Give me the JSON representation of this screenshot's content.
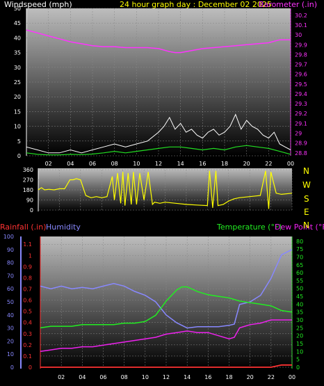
{
  "colors": {
    "background": "#000000",
    "wind_label": "#ffffff",
    "title": "#ffff00",
    "barometer": "#ff33ff",
    "direction": "#ffff00",
    "rain": "#ff3333",
    "humidity": "#8888ff",
    "temperature": "#22ee22",
    "dewpoint": "#ee22ee",
    "gust": "#ffffff",
    "avg": "#22dd22"
  },
  "header": {
    "windspeed_label": "Windspeed (mph)",
    "title": "24 hour graph day : December 02 2025",
    "barometer_label": "Barometer (.in)"
  },
  "bottom_header": {
    "rain_label": "Rainfall (.in)",
    "humidity_label": "Humidity",
    "temp_label": "Temperature (°F)",
    "dew_label": "Dew Point (°F)"
  },
  "x_ticks": [
    "02",
    "04",
    "06",
    "08",
    "10",
    "12",
    "14",
    "16",
    "18",
    "20",
    "22",
    "00"
  ],
  "compass": [
    "N",
    "W",
    "S",
    "E",
    "N"
  ],
  "chart_data": [
    {
      "type": "line",
      "name": "wind-barometer",
      "x_range": [
        0,
        24
      ],
      "left_axis": {
        "ticks": [
          0,
          5,
          10,
          15,
          20,
          25,
          30,
          35,
          40,
          45,
          50
        ],
        "range": [
          0,
          50
        ]
      },
      "right_axis": {
        "ticks": [
          "28.8",
          "28.9",
          "29",
          "29.1",
          "29.2",
          "29.3",
          "29.4",
          "29.5",
          "29.6",
          "29.7",
          "29.8",
          "29.9",
          "30",
          "30.1",
          "30.2"
        ],
        "range": [
          28.77,
          30.27
        ]
      },
      "barometer": {
        "x": [
          0,
          1,
          2,
          3,
          4,
          5,
          6,
          7,
          8,
          9,
          10,
          11,
          12,
          13,
          13.5,
          14,
          15,
          16,
          17,
          18,
          19,
          20,
          21,
          22,
          23,
          24
        ],
        "y": [
          30.05,
          30.02,
          29.99,
          29.96,
          29.93,
          29.91,
          29.89,
          29.88,
          29.88,
          29.87,
          29.87,
          29.87,
          29.86,
          29.83,
          29.82,
          29.82,
          29.84,
          29.86,
          29.87,
          29.88,
          29.89,
          29.9,
          29.91,
          29.92,
          29.95,
          29.95
        ]
      },
      "wind_gust": {
        "x": [
          0,
          1,
          2,
          3,
          4,
          5,
          6,
          7,
          8,
          9,
          10,
          11,
          12,
          12.5,
          13,
          13.5,
          14,
          14.5,
          15,
          15.5,
          16,
          16.5,
          17,
          17.5,
          18,
          18.5,
          19,
          19.5,
          20,
          20.5,
          21,
          21.5,
          22,
          22.5,
          23,
          23.5,
          24
        ],
        "y": [
          3,
          2,
          1,
          1,
          2,
          1,
          2,
          3,
          4,
          3,
          4,
          5,
          8,
          10,
          13,
          9,
          11,
          8,
          9,
          7,
          6,
          8,
          9,
          7,
          8,
          10,
          14,
          9,
          12,
          10,
          9,
          7,
          6,
          8,
          4,
          3,
          2
        ]
      },
      "wind_avg": {
        "x": [
          0,
          1,
          2,
          3,
          4,
          5,
          6,
          7,
          8,
          9,
          10,
          11,
          12,
          13,
          14,
          15,
          16,
          17,
          18,
          19,
          20,
          21,
          22,
          23,
          24
        ],
        "y": [
          1,
          0.5,
          0.3,
          0.3,
          0.5,
          0.4,
          0.6,
          1,
          1.5,
          1,
          1.5,
          2,
          2.5,
          3,
          3,
          2.5,
          2,
          2.5,
          2,
          3,
          3.5,
          3,
          2.5,
          1.5,
          0.5
        ]
      }
    },
    {
      "type": "line",
      "name": "wind-direction",
      "x_range": [
        0,
        24
      ],
      "left_axis": {
        "ticks": [
          0,
          90,
          180,
          270,
          360
        ],
        "range": [
          0,
          360
        ]
      },
      "direction": {
        "x": [
          0,
          0.3,
          0.6,
          1,
          1.5,
          2,
          2.5,
          3,
          3.3,
          3.6,
          4,
          4.5,
          5,
          5.5,
          6,
          6.5,
          7,
          7.2,
          7.5,
          7.8,
          8,
          8.2,
          8.5,
          8.8,
          9,
          9.3,
          9.6,
          10,
          10.4,
          10.8,
          11,
          11.5,
          12,
          13,
          14,
          15,
          16,
          16.2,
          16.5,
          16.8,
          17,
          17.5,
          18,
          18.5,
          19,
          20,
          21,
          21.5,
          21.8,
          22,
          22.5,
          23,
          24
        ],
        "y": [
          180,
          200,
          180,
          185,
          180,
          190,
          190,
          270,
          270,
          280,
          270,
          130,
          110,
          120,
          110,
          120,
          300,
          90,
          330,
          60,
          340,
          40,
          330,
          50,
          340,
          50,
          330,
          90,
          340,
          50,
          70,
          60,
          70,
          60,
          50,
          45,
          40,
          350,
          20,
          350,
          40,
          50,
          80,
          100,
          110,
          120,
          130,
          350,
          10,
          340,
          150,
          140,
          150
        ]
      }
    },
    {
      "type": "line",
      "name": "rain-humidity-temp-dew",
      "x_range": [
        0,
        24
      ],
      "humidity_axis": {
        "ticks": [
          0,
          10,
          20,
          30,
          40,
          50,
          60,
          70,
          80,
          90,
          100
        ],
        "range": [
          0,
          100
        ]
      },
      "rain_axis": {
        "ticks": [
          "0",
          "0.1",
          "0.2",
          "0.3",
          "0.4",
          "0.5",
          "0.6",
          "0.7",
          "0.8",
          "0.9",
          "1",
          "1.1"
        ],
        "range": [
          0,
          1.17
        ]
      },
      "temp_axis": {
        "ticks": [
          0,
          5,
          10,
          15,
          20,
          25,
          30,
          35,
          40,
          45,
          50,
          55,
          60,
          65,
          70,
          75,
          80
        ],
        "range": [
          0,
          83
        ]
      },
      "humidity": {
        "x": [
          0,
          1,
          2,
          3,
          4,
          5,
          6,
          7,
          8,
          9,
          10,
          11,
          12,
          13,
          14,
          15,
          16,
          17,
          18,
          18.5,
          19,
          20,
          21,
          22,
          23,
          24
        ],
        "y": [
          62,
          60,
          62,
          60,
          61,
          60,
          62,
          64,
          62,
          58,
          55,
          50,
          40,
          34,
          30,
          31,
          31,
          31,
          32,
          33,
          48,
          50,
          55,
          68,
          86,
          90
        ]
      },
      "temperature": {
        "x": [
          0,
          1,
          2,
          3,
          4,
          5,
          6,
          7,
          8,
          9,
          10,
          11,
          12,
          13,
          13.5,
          14,
          15,
          16,
          17,
          18,
          19,
          20,
          21,
          22,
          23,
          24
        ],
        "y": [
          25,
          26,
          26,
          26,
          27,
          27,
          27,
          27,
          28,
          28,
          29,
          33,
          42,
          49,
          51,
          51,
          48,
          46,
          45,
          44,
          42,
          41,
          40,
          39,
          36,
          35
        ]
      },
      "dewpoint": {
        "x": [
          0,
          1,
          2,
          3,
          4,
          5,
          6,
          7,
          8,
          9,
          10,
          11,
          12,
          13,
          14,
          15,
          16,
          17,
          18,
          18.5,
          19,
          19.5,
          20,
          21,
          22,
          23,
          24
        ],
        "y": [
          10,
          11,
          12,
          12,
          13,
          13,
          14,
          15,
          16,
          17,
          18,
          19,
          21,
          22,
          23,
          22,
          22,
          20,
          18,
          19,
          25,
          26,
          27,
          28,
          30,
          30,
          30
        ]
      },
      "rainfall": {
        "x": [
          0,
          22,
          23,
          24
        ],
        "y": [
          0,
          0,
          0.02,
          0.02
        ]
      }
    }
  ]
}
